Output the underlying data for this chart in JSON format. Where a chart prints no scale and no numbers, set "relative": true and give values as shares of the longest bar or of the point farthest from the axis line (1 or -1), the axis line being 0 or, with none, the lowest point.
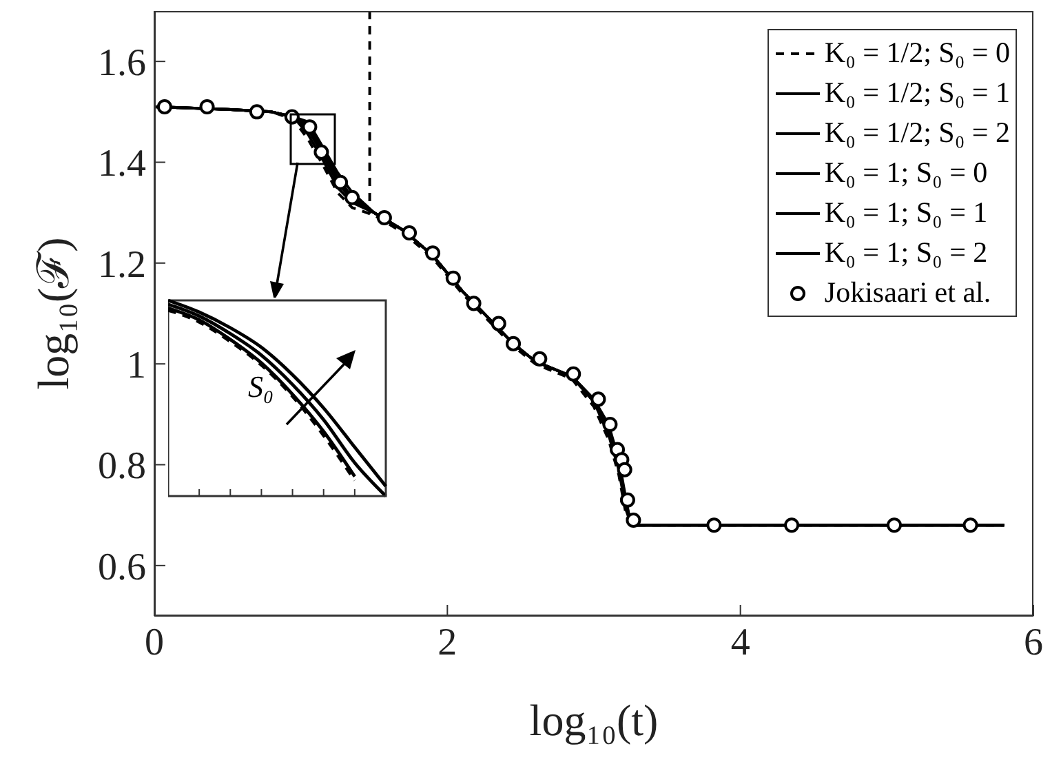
{
  "chart_data": [
    {
      "type": "line",
      "xlabel": "log₁₀(t)",
      "ylabel": "log₁₀(ℱ)",
      "xlim": [
        0,
        6
      ],
      "xticks": [
        0,
        2,
        4,
        6
      ],
      "ylim": [
        0.5,
        1.7
      ],
      "yticks": [
        0.6,
        0.8,
        1,
        1.2,
        1.4,
        1.6
      ],
      "x": [
        0,
        0.5,
        0.8,
        0.95,
        1.05,
        1.15,
        1.25,
        1.35,
        1.5,
        1.7,
        1.9,
        2.1,
        2.3,
        2.45,
        2.6,
        2.85,
        3.0,
        3.1,
        3.17,
        3.22,
        3.25,
        3.3,
        4,
        5,
        5.8
      ],
      "series": [
        {
          "name": "K₀ = 1/2; S₀ = 0",
          "color": "#000000",
          "line_style": "dashed",
          "values": [
            1.51,
            1.505,
            1.5,
            1.485,
            1.445,
            1.395,
            1.34,
            1.31,
            1.295,
            1.26,
            1.21,
            1.14,
            1.08,
            1.035,
            1.0,
            0.97,
            0.915,
            0.85,
            0.78,
            0.7,
            0.68,
            0.68,
            0.68,
            0.68,
            0.68
          ]
        },
        {
          "name": "K₀ = 1/2; S₀ = 1",
          "color": "#000000",
          "values": [
            1.51,
            1.505,
            1.5,
            1.49,
            1.47,
            1.42,
            1.37,
            1.33,
            1.3,
            1.265,
            1.215,
            1.145,
            1.085,
            1.04,
            1.005,
            0.975,
            0.93,
            0.875,
            0.805,
            0.725,
            0.685,
            0.68,
            0.68,
            0.68,
            0.68
          ]
        },
        {
          "name": "K₀ = 1/2; S₀ = 2",
          "color": "#000000",
          "values": [
            1.51,
            1.505,
            1.5,
            1.49,
            1.48,
            1.43,
            1.38,
            1.34,
            1.3,
            1.265,
            1.215,
            1.145,
            1.085,
            1.04,
            1.005,
            0.975,
            0.93,
            0.88,
            0.81,
            0.73,
            0.685,
            0.68,
            0.68,
            0.68,
            0.68
          ]
        },
        {
          "name": "K₀ = 1; S₀ = 0",
          "color": "#000000",
          "values": [
            1.51,
            1.505,
            1.5,
            1.49,
            1.455,
            1.405,
            1.35,
            1.32,
            1.3,
            1.265,
            1.215,
            1.145,
            1.085,
            1.04,
            1.005,
            0.975,
            0.925,
            0.86,
            0.79,
            0.71,
            0.685,
            0.68,
            0.68,
            0.68,
            0.68
          ]
        },
        {
          "name": "K₀ = 1; S₀ = 1",
          "color": "#000000",
          "values": [
            1.51,
            1.505,
            1.5,
            1.49,
            1.465,
            1.415,
            1.36,
            1.325,
            1.3,
            1.265,
            1.215,
            1.145,
            1.085,
            1.04,
            1.005,
            0.975,
            0.925,
            0.865,
            0.795,
            0.715,
            0.685,
            0.68,
            0.68,
            0.68,
            0.68
          ]
        },
        {
          "name": "K₀ = 1; S₀ = 2",
          "color": "#000000",
          "values": [
            1.51,
            1.505,
            1.5,
            1.49,
            1.475,
            1.425,
            1.37,
            1.33,
            1.3,
            1.265,
            1.215,
            1.145,
            1.085,
            1.04,
            1.005,
            0.975,
            0.925,
            0.87,
            0.8,
            0.72,
            0.685,
            0.68,
            0.68,
            0.68,
            0.68
          ]
        },
        {
          "name": "Jokisaari et al.",
          "type": "scatter",
          "marker": "circle",
          "color": "#000000",
          "x": [
            0.07,
            0.36,
            0.7,
            0.94,
            1.06,
            1.14,
            1.27,
            1.35,
            1.57,
            1.74,
            1.9,
            2.04,
            2.18,
            2.35,
            2.45,
            2.63,
            2.86,
            3.03,
            3.11,
            3.16,
            3.19,
            3.21,
            3.23,
            3.27,
            3.82,
            4.35,
            5.05,
            5.57
          ],
          "values": [
            1.51,
            1.51,
            1.5,
            1.49,
            1.47,
            1.42,
            1.36,
            1.33,
            1.29,
            1.26,
            1.22,
            1.17,
            1.12,
            1.08,
            1.04,
            1.01,
            0.98,
            0.93,
            0.88,
            0.83,
            0.81,
            0.79,
            0.73,
            0.69,
            0.68,
            0.68,
            0.68,
            0.68
          ]
        }
      ],
      "ref_lines": [
        {
          "axis": "x",
          "value": 1.47,
          "color": "#000000",
          "line_style": "dashed"
        }
      ],
      "legend": "top right"
    },
    {
      "type": "line",
      "relative": true,
      "categories": [
        null,
        null,
        null,
        null,
        null,
        null,
        null,
        null
      ],
      "annotations": [
        "S₀"
      ],
      "series": [
        {
          "color": "#000000",
          "line_style": "dashed",
          "values": [
            0.95,
            0.89,
            0.79,
            0.67,
            0.51,
            0.31,
            0.08,
            null
          ]
        },
        {
          "color": "#000000",
          "values": [
            0.96,
            0.9,
            0.8,
            0.68,
            0.52,
            0.33,
            0.1,
            null
          ]
        },
        {
          "color": "#000000",
          "values": [
            0.98,
            0.92,
            0.83,
            0.72,
            0.57,
            0.39,
            0.17,
            0
          ]
        },
        {
          "color": "#000000",
          "values": [
            1,
            0.94,
            0.86,
            0.76,
            0.62,
            0.45,
            0.25,
            0.05
          ]
        }
      ]
    }
  ]
}
